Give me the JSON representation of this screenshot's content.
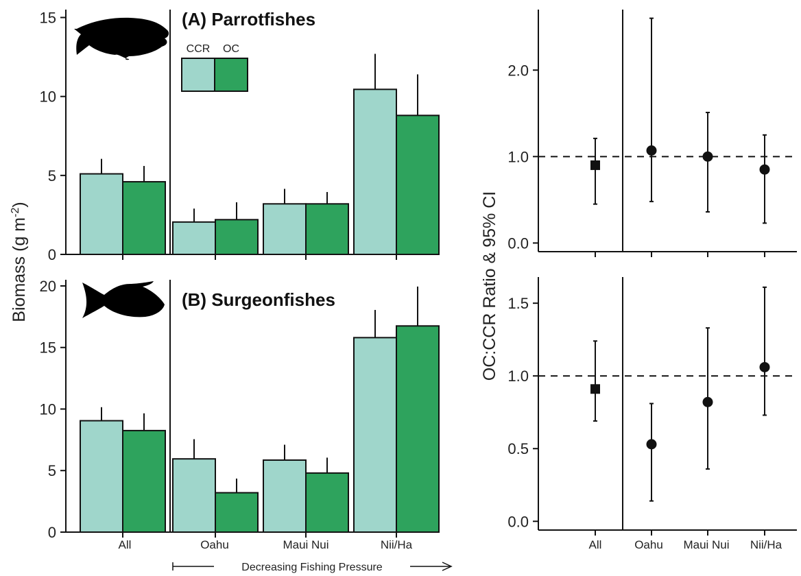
{
  "colors": {
    "CCR": "#9fd6cb",
    "OC": "#2ea35d",
    "ink": "#111111"
  },
  "legend": {
    "entries": [
      "CCR",
      "OC"
    ]
  },
  "xcategories": [
    "All",
    "Oahu",
    "Maui Nui",
    "Nii/Ha"
  ],
  "arrow_label": "Decreasing Fishing Pressure",
  "icons": [
    "parrotfish-silhouette-icon",
    "surgeonfish-silhouette-icon"
  ],
  "chart_data": [
    {
      "type": "bar",
      "title": "(A) Parrotfishes",
      "categories": [
        "All",
        "Oahu",
        "Maui Nui",
        "Nii/Ha"
      ],
      "ylabel": "Biomass (g m-2)",
      "ylim": [
        0,
        15.5
      ],
      "yticks": [
        0,
        5,
        10,
        15
      ],
      "series": [
        {
          "name": "CCR",
          "values": [
            5.1,
            2.05,
            3.2,
            10.45
          ],
          "err_upper": [
            6.05,
            2.9,
            4.15,
            12.7
          ]
        },
        {
          "name": "OC",
          "values": [
            4.6,
            2.2,
            3.2,
            8.8
          ],
          "err_upper": [
            5.6,
            3.3,
            3.95,
            11.4
          ]
        }
      ]
    },
    {
      "type": "bar",
      "title": "(B) Surgeonfishes",
      "categories": [
        "All",
        "Oahu",
        "Maui Nui",
        "Nii/Ha"
      ],
      "ylabel": "Biomass (g m-2)",
      "ylim": [
        0,
        20.5
      ],
      "yticks": [
        0,
        5,
        10,
        15,
        20
      ],
      "series": [
        {
          "name": "CCR",
          "values": [
            9.05,
            5.95,
            5.85,
            15.8
          ],
          "err_upper": [
            10.15,
            7.55,
            7.1,
            18.05
          ]
        },
        {
          "name": "OC",
          "values": [
            8.25,
            3.2,
            4.8,
            16.75
          ],
          "err_upper": [
            9.65,
            4.35,
            6.05,
            19.95
          ]
        }
      ]
    },
    {
      "type": "scatter",
      "ylabel": "OC:CCR Ratio & 95% CI",
      "categories": [
        "All",
        "Oahu",
        "Maui Nui",
        "Nii/Ha"
      ],
      "ylim": [
        -0.1,
        2.7
      ],
      "yticks": [
        0.0,
        1.0,
        2.0
      ],
      "reference_line": 1.0,
      "estimate": [
        0.9,
        1.07,
        1.0,
        0.85
      ],
      "ci_lower": [
        0.45,
        0.48,
        0.36,
        0.23
      ],
      "ci_upper": [
        1.21,
        2.6,
        1.51,
        1.25
      ],
      "markers": [
        "square",
        "circle",
        "circle",
        "circle"
      ]
    },
    {
      "type": "scatter",
      "ylabel": "OC:CCR Ratio & 95% CI",
      "categories": [
        "All",
        "Oahu",
        "Maui Nui",
        "Nii/Ha"
      ],
      "ylim": [
        -0.06,
        1.68
      ],
      "yticks": [
        0.0,
        0.5,
        1.0,
        1.5
      ],
      "reference_line": 1.0,
      "estimate": [
        0.91,
        0.53,
        0.82,
        1.06
      ],
      "ci_lower": [
        0.69,
        0.14,
        0.36,
        0.73
      ],
      "ci_upper": [
        1.24,
        0.81,
        1.33,
        1.61
      ],
      "markers": [
        "square",
        "circle",
        "circle",
        "circle"
      ]
    }
  ]
}
